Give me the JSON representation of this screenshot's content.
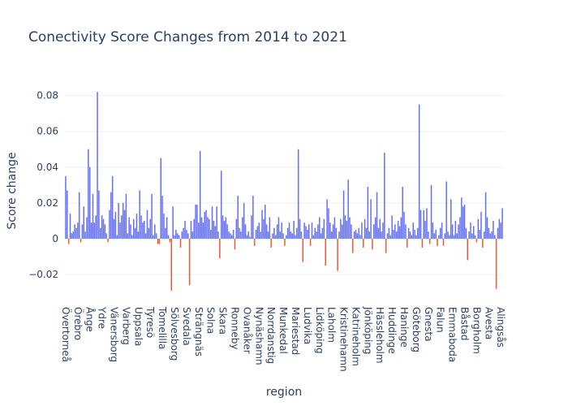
{
  "chart_data": {
    "type": "bar",
    "title": "Conectivity Score Changes from 2014 to 2021",
    "x_label": "region",
    "y_label": "Score change",
    "color": "#636efa",
    "negative_color": "#ef553b",
    "grid": true,
    "ylim": [
      -0.0345,
      0.088
    ],
    "yticks": [
      {
        "value": -0.02,
        "label": "−0.02"
      },
      0,
      0.02,
      0.04,
      0.06,
      0.08
    ],
    "categories": [
      "Övertorneå",
      null,
      null,
      null,
      null,
      null,
      null,
      null,
      "Örebro",
      null,
      null,
      null,
      null,
      null,
      null,
      null,
      "Ånge",
      null,
      null,
      null,
      null,
      null,
      null,
      null,
      "Ydre",
      null,
      null,
      null,
      null,
      null,
      null,
      null,
      "Vänersborg",
      null,
      null,
      null,
      null,
      null,
      null,
      null,
      "Varberg",
      null,
      null,
      null,
      null,
      null,
      null,
      null,
      "Uppsala",
      null,
      null,
      null,
      null,
      null,
      null,
      null,
      "Tyresö",
      null,
      null,
      null,
      null,
      null,
      null,
      null,
      "Tomelilla",
      null,
      null,
      null,
      null,
      null,
      null,
      null,
      "Sölvesborg",
      null,
      null,
      null,
      null,
      null,
      null,
      null,
      "Svedala",
      null,
      null,
      null,
      null,
      null,
      null,
      null,
      "Strängnäs",
      null,
      null,
      null,
      null,
      null,
      null,
      null,
      "Solna",
      null,
      null,
      null,
      null,
      null,
      null,
      null,
      "Skara",
      null,
      null,
      null,
      null,
      null,
      null,
      null,
      "Ronneby",
      null,
      null,
      null,
      null,
      null,
      null,
      null,
      "Ovanåker",
      null,
      null,
      null,
      null,
      null,
      null,
      null,
      "Nynäshamn",
      null,
      null,
      null,
      null,
      null,
      null,
      null,
      "Norrdanstig",
      null,
      null,
      null,
      null,
      null,
      null,
      null,
      "Munkedal",
      null,
      null,
      null,
      null,
      null,
      null,
      null,
      "Mariestad",
      null,
      null,
      null,
      null,
      null,
      null,
      null,
      "Ludvika",
      null,
      null,
      null,
      null,
      null,
      null,
      null,
      "Lidköping",
      null,
      null,
      null,
      null,
      null,
      null,
      null,
      "Laholm",
      null,
      null,
      null,
      null,
      null,
      null,
      null,
      "Kristinehamn",
      null,
      null,
      null,
      null,
      null,
      null,
      null,
      "Katrineholm",
      null,
      null,
      null,
      null,
      null,
      null,
      null,
      "Jönköping",
      null,
      null,
      null,
      null,
      null,
      null,
      null,
      "Hässleholm",
      null,
      null,
      null,
      null,
      null,
      null,
      null,
      "Huddinge",
      null,
      null,
      null,
      null,
      null,
      null,
      null,
      "Haninge",
      null,
      null,
      null,
      null,
      null,
      null,
      null,
      "Göteborg",
      null,
      null,
      null,
      null,
      null,
      null,
      null,
      "Gnesta",
      null,
      null,
      null,
      null,
      null,
      null,
      null,
      "Falun",
      null,
      null,
      null,
      null,
      null,
      null,
      null,
      "Emmaboda",
      null,
      null,
      null,
      null,
      null,
      null,
      null,
      "Båstad",
      null,
      null,
      null,
      null,
      null,
      null,
      null,
      "Borgholm",
      null,
      null,
      null,
      null,
      null,
      null,
      null,
      "Avesta",
      null,
      null,
      null,
      null,
      null,
      null,
      null,
      "Alingsås",
      null
    ],
    "values": [
      0.035,
      0.027,
      -0.003,
      0.014,
      0.003,
      0.004,
      0.008,
      0.006,
      0.009,
      0.026,
      -0.002,
      0.008,
      0.018,
      0.004,
      0.012,
      0.05,
      0.04,
      0.009,
      0.025,
      0.009,
      0.013,
      0.082,
      0.027,
      0.006,
      0.013,
      0.011,
      0.008,
      0.003,
      -0.002,
      0.016,
      0.026,
      0.035,
      0.011,
      0.015,
      0.002,
      0.02,
      0.009,
      0.013,
      0.02,
      0.016,
      0.025,
      0.003,
      0.012,
      0.008,
      0.002,
      0.011,
      0.006,
      0.014,
      0.004,
      0.027,
      0.013,
      0.009,
      0.01,
      0.003,
      0.016,
      0.006,
      0.011,
      0.025,
      0.002,
      0.008,
      0.003,
      -0.003,
      -0.003,
      0.045,
      0.024,
      0.014,
      0.006,
      0.012,
      0.002,
      -0.002,
      -0.029,
      0.018,
      0.002,
      0.005,
      0.003,
      0.002,
      -0.005,
      0.004,
      0.006,
      0.01,
      0.005,
      0.003,
      -0.026,
      0.01,
      0.004,
      0.011,
      0.019,
      0.019,
      0.009,
      0.049,
      0.012,
      0.009,
      0.015,
      0.016,
      0.012,
      0.011,
      0.005,
      0.018,
      0.01,
      0.007,
      0.018,
      0.004,
      -0.011,
      0.038,
      0.013,
      0.01,
      0.012,
      0.008,
      0.004,
      0.003,
      0.002,
      0.005,
      -0.006,
      0.011,
      0.024,
      0.006,
      0.004,
      0.012,
      0.02,
      0.008,
      0.002,
      0.004,
      0.001,
      0.013,
      0.024,
      -0.004,
      0.005,
      0.007,
      0.009,
      0.004,
      0.016,
      0.011,
      0.019,
      0.008,
      0.004,
      0.012,
      -0.005,
      0.003,
      0.006,
      0.002,
      0.008,
      0.012,
      0.004,
      0.009,
      0.003,
      -0.004,
      0.002,
      0.006,
      0.009,
      0.004,
      0.003,
      0.01,
      0.002,
      0.006,
      0.05,
      0.011,
      0.004,
      -0.013,
      0.009,
      0.007,
      0.005,
      0.008,
      -0.004,
      0.009,
      0.002,
      0.006,
      0.004,
      0.008,
      0.012,
      0.003,
      0.006,
      0.011,
      -0.015,
      0.022,
      0.017,
      0.009,
      0.004,
      0.008,
      0.012,
      0.006,
      -0.018,
      0.004,
      0.011,
      0.008,
      0.027,
      0.013,
      0.01,
      0.033,
      0.012,
      0.008,
      -0.008,
      0.004,
      0.005,
      0.003,
      0.006,
      0.002,
      0.009,
      -0.005,
      0.011,
      0.006,
      0.029,
      0.004,
      0.022,
      -0.006,
      0.008,
      0.012,
      0.026,
      0.006,
      0.011,
      0.004,
      0.009,
      0.048,
      -0.008,
      0.003,
      0.006,
      0.002,
      0.013,
      0.005,
      0.008,
      0.004,
      0.01,
      0.007,
      0.012,
      0.029,
      0.015,
      0.008,
      -0.005,
      0.006,
      0.004,
      0.002,
      0.009,
      0.005,
      0.002,
      0.006,
      0.075,
      0.016,
      -0.005,
      0.016,
      0.01,
      0.017,
      0.004,
      -0.003,
      0.03,
      0.009,
      0.003,
      0.005,
      -0.004,
      0.002,
      0.006,
      0.009,
      -0.004,
      0.003,
      0.032,
      0.004,
      0.002,
      0.022,
      0.008,
      0.002,
      0.01,
      0.003,
      0.008,
      0.012,
      0.023,
      0.018,
      0.019,
      0.006,
      -0.012,
      0.004,
      0.009,
      0.003,
      0.007,
      0.002,
      -0.002,
      0.011,
      0.005,
      0.015,
      -0.005,
      0.004,
      0.026,
      0.012,
      0.006,
      0.003,
      0.004,
      0.01,
      0.002,
      -0.028,
      0.006,
      0.011,
      0.009,
      0.017
    ]
  }
}
